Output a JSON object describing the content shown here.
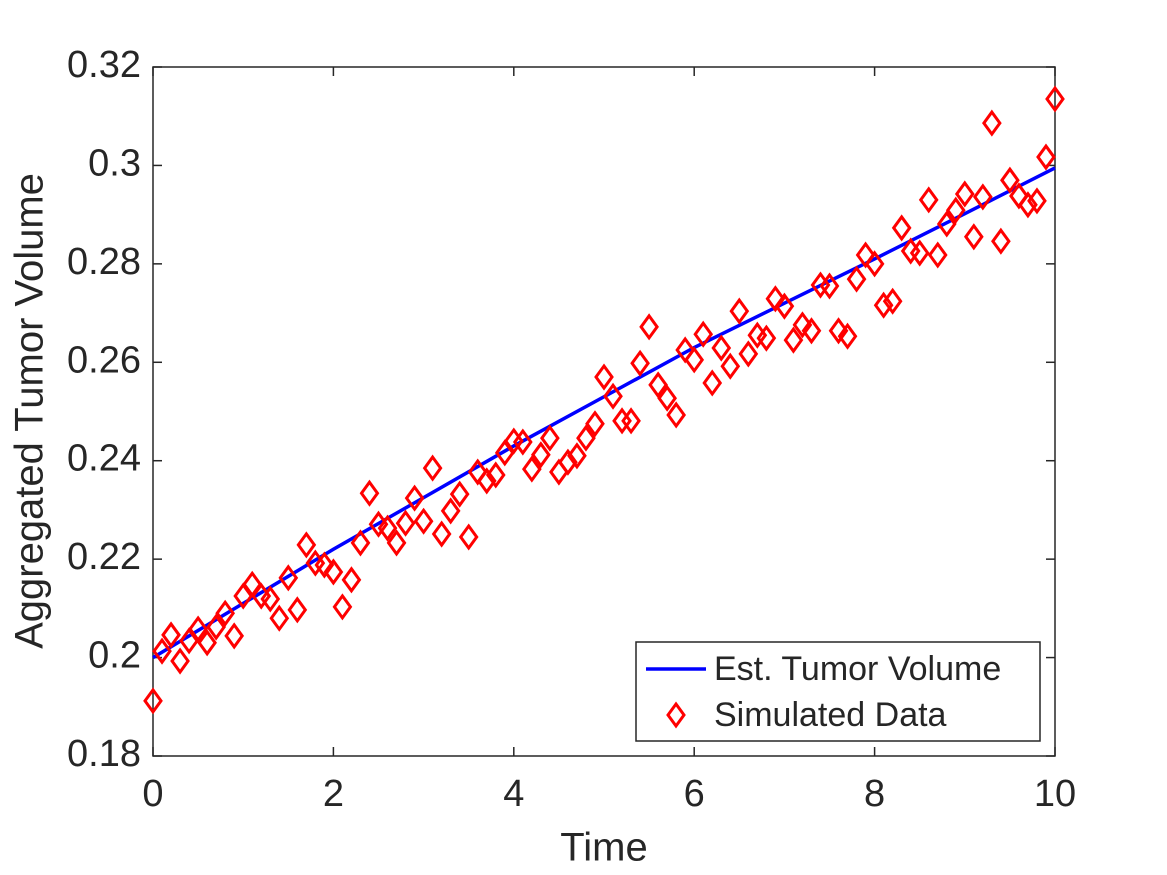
{
  "chart_data": {
    "type": "line",
    "xlabel": "Time",
    "ylabel": "Aggregated Tumor Volume",
    "xlim": [
      0,
      10
    ],
    "ylim": [
      0.18,
      0.32
    ],
    "xticks": [
      0,
      2,
      4,
      6,
      8,
      10
    ],
    "yticks": [
      0.18,
      0.2,
      0.22,
      0.24,
      0.26,
      0.28,
      0.3,
      0.32
    ],
    "legend": "lower right",
    "series": [
      {
        "name": "Est. Tumor Volume",
        "color": "#0000ff",
        "style": "line",
        "x": [
          0,
          1,
          2,
          3,
          4,
          5,
          6,
          7,
          8,
          9,
          10
        ],
        "values": [
          0.2,
          0.211,
          0.222,
          0.2325,
          0.243,
          0.253,
          0.263,
          0.272,
          0.281,
          0.2902,
          0.2995
        ]
      },
      {
        "name": "Simulated Data",
        "color": "#ff0000",
        "style": "marker",
        "marker": "diamond",
        "x": [
          0,
          0.1,
          0.2,
          0.3,
          0.4,
          0.5,
          0.6,
          0.7,
          0.8,
          0.9,
          1,
          1.1,
          1.2,
          1.3,
          1.4,
          1.5,
          1.6,
          1.7,
          1.8,
          1.9,
          2,
          2.1,
          2.2,
          2.3,
          2.4,
          2.5,
          2.6,
          2.7,
          2.8,
          2.9,
          3,
          3.1,
          3.2,
          3.3,
          3.4,
          3.5,
          3.6,
          3.7,
          3.8,
          3.9,
          4,
          4.1,
          4.2,
          4.3,
          4.4,
          4.5,
          4.6,
          4.7,
          4.8,
          4.9,
          5,
          5.1,
          5.2,
          5.3,
          5.4,
          5.5,
          5.6,
          5.7,
          5.8,
          5.9,
          6,
          6.1,
          6.2,
          6.3,
          6.4,
          6.5,
          6.6,
          6.7,
          6.8,
          6.9,
          7,
          7.1,
          7.2,
          7.3,
          7.4,
          7.5,
          7.6,
          7.7,
          7.8,
          7.9,
          8,
          8.1,
          8.2,
          8.3,
          8.4,
          8.5,
          8.6,
          8.7,
          8.8,
          8.9,
          9,
          9.1,
          9.2,
          9.3,
          9.4,
          9.5,
          9.6,
          9.7,
          9.8,
          9.9,
          10
        ],
        "values": [
          0.1912,
          0.2013,
          0.2046,
          0.1993,
          0.2034,
          0.2058,
          0.203,
          0.2062,
          0.209,
          0.2044,
          0.2125,
          0.2149,
          0.2125,
          0.2119,
          0.208,
          0.2162,
          0.2097,
          0.2229,
          0.2192,
          0.2188,
          0.2174,
          0.2103,
          0.2158,
          0.2233,
          0.2334,
          0.2271,
          0.2263,
          0.2233,
          0.2273,
          0.2324,
          0.2277,
          0.2385,
          0.2251,
          0.2298,
          0.2332,
          0.2245,
          0.2377,
          0.2359,
          0.2371,
          0.2416,
          0.244,
          0.2438,
          0.2383,
          0.2412,
          0.2446,
          0.2377,
          0.2397,
          0.241,
          0.2446,
          0.2475,
          0.257,
          0.2531,
          0.2481,
          0.2481,
          0.2598,
          0.2672,
          0.2554,
          0.2527,
          0.2493,
          0.2625,
          0.2605,
          0.2657,
          0.2558,
          0.2629,
          0.2592,
          0.2704,
          0.2617,
          0.2655,
          0.2649,
          0.2729,
          0.2714,
          0.2645,
          0.2676,
          0.2664,
          0.2757,
          0.2755,
          0.2664,
          0.2653,
          0.2769,
          0.2818,
          0.28,
          0.2716,
          0.2724,
          0.2873,
          0.2826,
          0.2822,
          0.293,
          0.2818,
          0.2881,
          0.2909,
          0.2942,
          0.2855,
          0.2936,
          0.3086,
          0.2846,
          0.297,
          0.2938,
          0.292,
          0.2928,
          0.3017,
          0.3135
        ]
      }
    ]
  }
}
